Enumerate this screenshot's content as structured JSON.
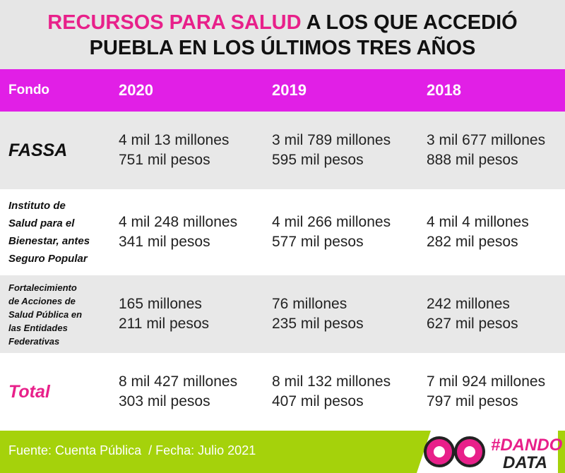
{
  "header": {
    "title_highlight": "RECURSOS PARA SALUD",
    "title_rest": "A LOS QUE ACCEDIÓ",
    "title_line2": "PUEBLA EN LOS ÚLTIMOS TRES AÑOS"
  },
  "table": {
    "columns": [
      "Fondo",
      "2020",
      "2019",
      "2018"
    ],
    "rows": [
      {
        "label": [
          "FASSA"
        ],
        "cells": [
          [
            "4 mil 13 millones",
            "751 mil pesos"
          ],
          [
            "3 mil 789 millones",
            "595 mil pesos"
          ],
          [
            "3 mil 677 millones",
            "888 mil pesos"
          ]
        ]
      },
      {
        "label": [
          "Instituto de",
          "Salud para el",
          "Bienestar, antes",
          "Seguro Popular"
        ],
        "cells": [
          [
            "4 mil 248 millones",
            "341 mil pesos"
          ],
          [
            "4 mil 266 millones",
            "577 mil pesos"
          ],
          [
            "4 mil 4 millones",
            "282 mil pesos"
          ]
        ]
      },
      {
        "label": [
          "Fortalecimiento",
          "de Acciones de",
          "Salud Pública en",
          "las Entidades",
          "Federativas"
        ],
        "cells": [
          [
            "165 millones",
            "211 mil pesos"
          ],
          [
            "76 millones",
            "235 mil pesos"
          ],
          [
            "242 millones",
            "627 mil pesos"
          ]
        ]
      },
      {
        "label": [
          "Total"
        ],
        "cells": [
          [
            "8 mil 427 millones",
            "303 mil pesos"
          ],
          [
            "8 mil 132 millones",
            "407 mil pesos"
          ],
          [
            "7 mil 924 millones",
            "797 mil pesos"
          ]
        ]
      }
    ]
  },
  "footer": {
    "source": "Fuente: Cuenta Pública  / Fecha: Julio 2021"
  },
  "logo": {
    "line1": "#DANDO",
    "line2": "DATA"
  }
}
